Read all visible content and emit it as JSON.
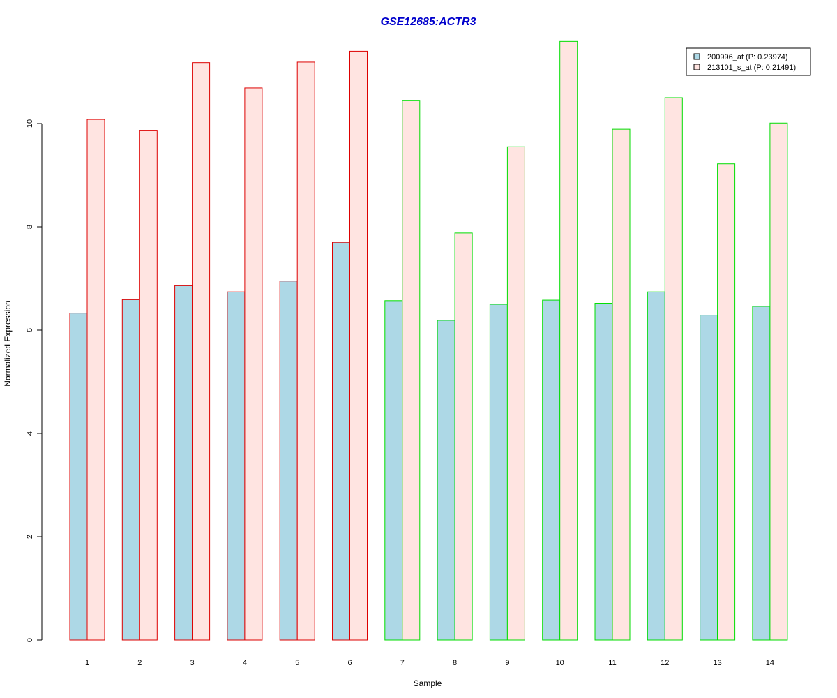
{
  "chart_data": {
    "type": "bar",
    "title": "GSE12685:ACTR3",
    "xlabel": "Sample",
    "ylabel": "Normalized Expression",
    "ylim": [
      0,
      11.6
    ],
    "yticks": [
      "0",
      "2",
      "4",
      "6",
      "8",
      "10"
    ],
    "categories": [
      "1",
      "2",
      "3",
      "4",
      "5",
      "6",
      "7",
      "8",
      "9",
      "10",
      "11",
      "12",
      "13",
      "14"
    ],
    "series": [
      {
        "name": "200996_at (P: 0.23974)",
        "fill": "#add8e6",
        "values": [
          6.33,
          6.59,
          6.86,
          6.74,
          6.95,
          7.7,
          6.57,
          6.19,
          6.5,
          6.58,
          6.52,
          6.74,
          6.29,
          6.46
        ]
      },
      {
        "name": "213101_s_at (P: 0.21491)",
        "fill": "#ffe4e1",
        "values": [
          10.08,
          9.87,
          11.18,
          10.69,
          11.19,
          11.4,
          10.45,
          7.88,
          9.55,
          11.59,
          9.89,
          10.5,
          9.22,
          10.01
        ]
      }
    ],
    "group_border_colors": [
      "#dd0000",
      "#dd0000",
      "#dd0000",
      "#dd0000",
      "#dd0000",
      "#dd0000",
      "#00dd00",
      "#00dd00",
      "#00dd00",
      "#00dd00",
      "#00dd00",
      "#00dd00",
      "#00dd00",
      "#00dd00"
    ],
    "legend_position": "top-right",
    "grid": false
  }
}
